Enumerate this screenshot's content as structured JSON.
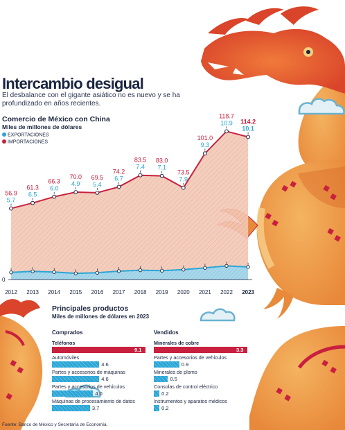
{
  "header": {
    "title": "Intercambio desigual",
    "subtitle": "El desbalance con el gigante asiático no es nuevo y se ha profundizado en años recientes."
  },
  "trade_chart": {
    "title": "Comercio de México con China",
    "units": "Miles de millones de dólares",
    "legend": {
      "exports": "EXPORTACIONES",
      "imports": "IMPORTACIONES"
    },
    "baseline_label": "0"
  },
  "products": {
    "title": "Principales productos",
    "units": "Miles de millones de dólares en 2023",
    "bought_label": "Comprados",
    "sold_label": "Vendidos"
  },
  "source": "Fuente: Banco de México y Secretaría de Economía.",
  "colors": {
    "imports": "#c8203e",
    "exports": "#2aa6d6",
    "import_fill": "#f3c8b5",
    "export_fill": "#a9d7ea",
    "text": "#1b2540"
  },
  "chart_data": [
    {
      "type": "area",
      "title": "Comercio de México con China",
      "ylabel": "Miles de millones de dólares",
      "ylim": [
        0,
        125
      ],
      "grid": false,
      "legend_position": "top-left",
      "categories": [
        "2012",
        "2013",
        "2014",
        "2015",
        "2016",
        "2017",
        "2018",
        "2019",
        "2020",
        "2021",
        "2022",
        "2023"
      ],
      "series": [
        {
          "name": "IMPORTACIONES",
          "values": [
            56.9,
            61.3,
            66.3,
            70.0,
            69.5,
            74.2,
            83.5,
            83.0,
            73.5,
            101.0,
            118.7,
            114.2
          ]
        },
        {
          "name": "EXPORTACIONES",
          "values": [
            5.7,
            6.5,
            6.0,
            4.9,
            5.4,
            6.7,
            7.4,
            7.1,
            7.9,
            9.3,
            10.9,
            10.1
          ]
        }
      ]
    },
    {
      "type": "bar",
      "title": "Comprados",
      "categories": [
        "Teléfonos",
        "Automóviles",
        "Partes y accesorios de máquinas",
        "Partes y accesorios de vehículos",
        "Máquinas de procesamiento de datos"
      ],
      "values": [
        9.1,
        4.6,
        4.6,
        4.0,
        3.7
      ],
      "labels": [
        "9.1",
        "4.6",
        "4.6",
        "4.0",
        "3.7"
      ]
    },
    {
      "type": "bar",
      "title": "Vendidos",
      "categories": [
        "Minerales de cobre",
        "Partes y accesorios de vehículos",
        "Minerales de plomo",
        "Consolas de control eléctrico",
        "Instrumentos y aparatos médicos"
      ],
      "values": [
        3.3,
        0.9,
        0.5,
        0.2,
        0.2
      ],
      "labels": [
        "3.3",
        "0.9",
        "0.5",
        "0.2",
        "0.2"
      ]
    }
  ]
}
